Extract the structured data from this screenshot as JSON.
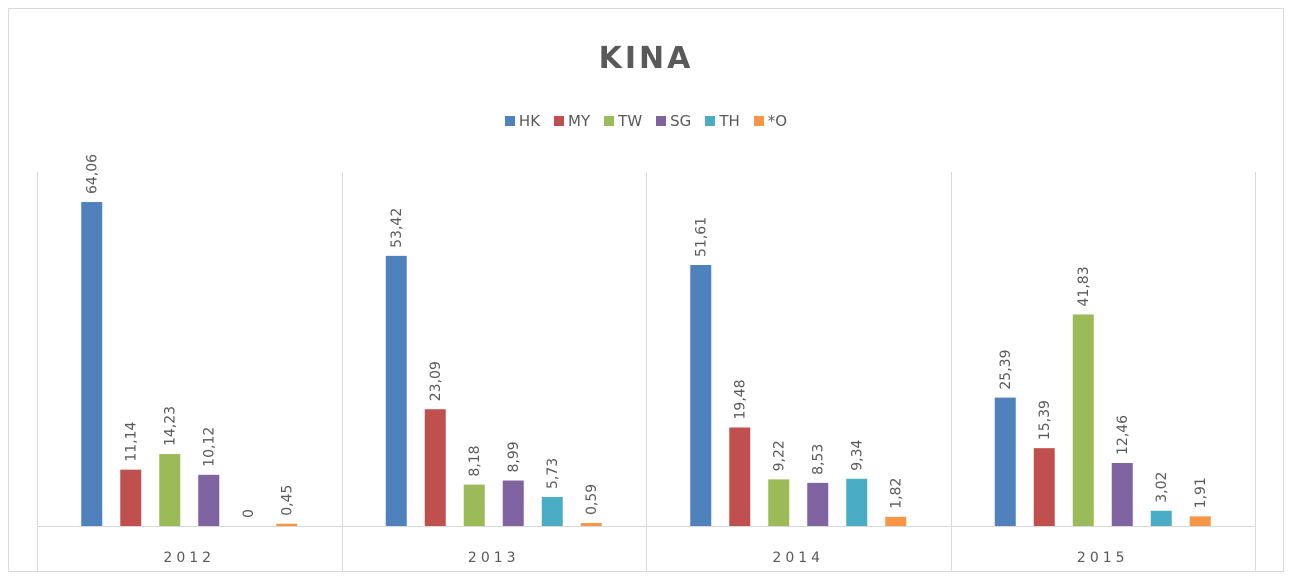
{
  "chart_data": {
    "type": "bar",
    "title": "KINA",
    "categories": [
      "2012",
      "2013",
      "2014",
      "2015"
    ],
    "series": [
      {
        "name": "HK",
        "color": "#4f81bd",
        "values": [
          64.06,
          53.42,
          51.61,
          25.39
        ],
        "value_labels": [
          "64,06",
          "53,42",
          "51,61",
          "25,39"
        ]
      },
      {
        "name": "MY",
        "color": "#c0504d",
        "values": [
          11.14,
          23.09,
          19.48,
          15.39
        ],
        "value_labels": [
          "11,14",
          "23,09",
          "19,48",
          "15,39"
        ]
      },
      {
        "name": "TW",
        "color": "#9bbb59",
        "values": [
          14.23,
          8.18,
          9.22,
          41.83
        ],
        "value_labels": [
          "14,23",
          "8,18",
          "9,22",
          "41,83"
        ]
      },
      {
        "name": "SG",
        "color": "#8064a2",
        "values": [
          10.12,
          8.99,
          8.53,
          12.46
        ],
        "value_labels": [
          "10,12",
          "8,99",
          "8,53",
          "12,46"
        ]
      },
      {
        "name": "TH",
        "color": "#4bacc6",
        "values": [
          0,
          5.73,
          9.34,
          3.02
        ],
        "value_labels": [
          "0",
          "5,73",
          "9,34",
          "3,02"
        ]
      },
      {
        "name": "*O",
        "color": "#f79646",
        "values": [
          0.45,
          0.59,
          1.82,
          1.91
        ],
        "value_labels": [
          "0,45",
          "0,59",
          "1,82",
          "1,91"
        ]
      }
    ],
    "ylim": [
      0,
      70
    ],
    "legend": "top"
  }
}
